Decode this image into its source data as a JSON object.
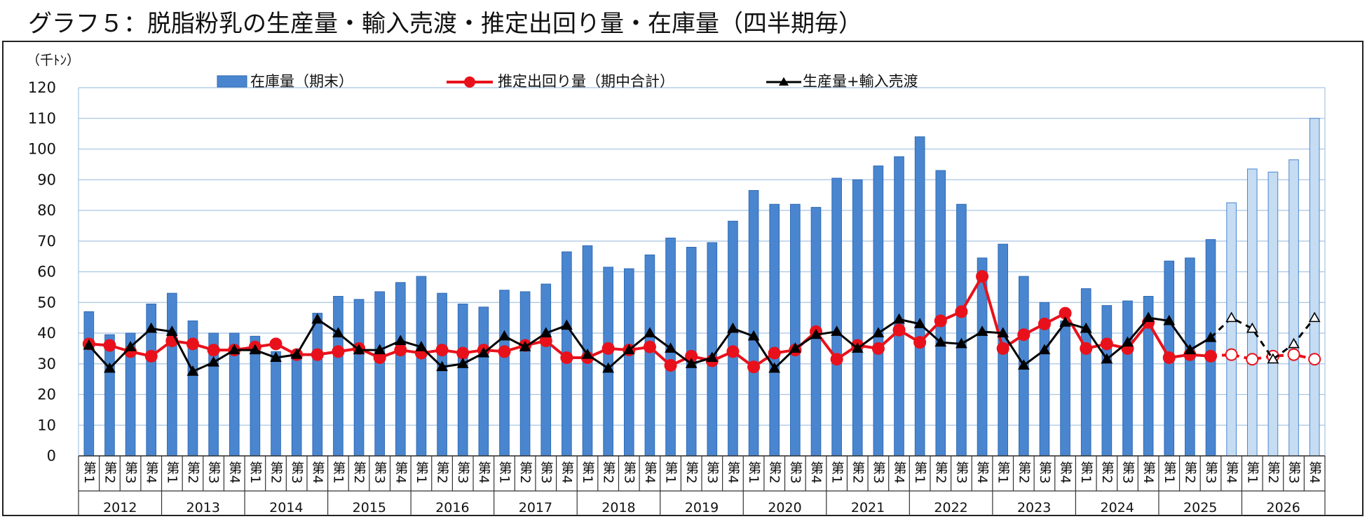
{
  "chart_data": {
    "type": "bar",
    "title": "グラフ５：脱脂粉乳の生産量・輸入売渡・推定出回り量・在庫量（四半期毎）",
    "ylabel": "（千ﾄﾝ）",
    "xlabel": "",
    "ylim": [
      0,
      120
    ],
    "yticks": [
      0,
      10,
      20,
      30,
      40,
      50,
      60,
      70,
      80,
      90,
      100,
      110,
      120
    ],
    "grid": true,
    "legend_position": "top",
    "years": [
      "2012",
      "2013",
      "2014",
      "2015",
      "2016",
      "2017",
      "2018",
      "2019",
      "2020",
      "2021",
      "2022",
      "2023",
      "2024",
      "2025",
      "2026"
    ],
    "quarter_labels": [
      "第1",
      "第2",
      "第3",
      "第4"
    ],
    "forecast_start_index": 55,
    "series": [
      {
        "name": "在庫量（期末）",
        "type": "bar",
        "color": "#4a86d0",
        "forecast_color": "#c5dcf2",
        "values": [
          47,
          39.5,
          40,
          49.5,
          53,
          44,
          40,
          40,
          39,
          34,
          33,
          46.5,
          52,
          51,
          53.5,
          56.5,
          58.5,
          53,
          49.5,
          48.5,
          54,
          53.5,
          56,
          66.5,
          68.5,
          61.5,
          61,
          65.5,
          71,
          68,
          69.5,
          76.5,
          86.5,
          82,
          82,
          81,
          90.5,
          90,
          94.5,
          97.5,
          104,
          93,
          82,
          64.5,
          69,
          58.5,
          50,
          44,
          54.5,
          49,
          50.5,
          52,
          63.5,
          64.5,
          70.5,
          82.5,
          93.5,
          92.5,
          96.5,
          110
        ]
      },
      {
        "name": "推定出回り量（期中合計）",
        "type": "line",
        "color": "#e8111b",
        "values": [
          36.5,
          36,
          34,
          32.5,
          37.5,
          36.5,
          34.5,
          34.5,
          35.5,
          36.5,
          33,
          33,
          34,
          35,
          32,
          34.5,
          33.5,
          34.5,
          33.5,
          34.5,
          34,
          36,
          37.5,
          32,
          32,
          35,
          34.5,
          35.5,
          29.5,
          32.5,
          31,
          34,
          29,
          33.5,
          34.5,
          40.5,
          31.5,
          36,
          35,
          41,
          37,
          44,
          47,
          58.5,
          35,
          39.5,
          43,
          46.5,
          35,
          36.5,
          35,
          43.5,
          32,
          33,
          32.5,
          33,
          31.5,
          32.5,
          33,
          31.5
        ]
      },
      {
        "name": "生産量+輸入売渡",
        "type": "line",
        "color": "#000000",
        "values": [
          36,
          28.5,
          35.5,
          41.5,
          40.5,
          27.5,
          30.5,
          34.5,
          34.5,
          32,
          33,
          44.5,
          40,
          34.5,
          34.5,
          37.5,
          35.5,
          29,
          30,
          33.5,
          39,
          35.5,
          40,
          42.5,
          33,
          28.5,
          34.5,
          40,
          35,
          30,
          32,
          41.5,
          39,
          28.5,
          35,
          39.5,
          40.5,
          35,
          40,
          44.5,
          43,
          37,
          36.5,
          40.5,
          40,
          29.5,
          34.5,
          43.5,
          41.5,
          31.5,
          37,
          45,
          44,
          34.5,
          38.5,
          45,
          41.5,
          31.5,
          36.5,
          45
        ]
      }
    ]
  }
}
